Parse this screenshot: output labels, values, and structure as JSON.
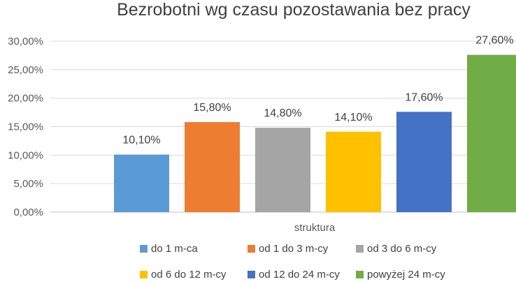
{
  "chart_data": {
    "type": "bar",
    "title": "Bezrobotni wg czasu pozostawania bez pracy",
    "xlabel": "struktura",
    "ylabel": "",
    "ylim": [
      0,
      30
    ],
    "yticks": [
      "0,00%",
      "5,00%",
      "10,00%",
      "15,00%",
      "20,00%",
      "25,00%",
      "30,00%"
    ],
    "grid": true,
    "legend_position": "bottom",
    "categories": [
      "struktura"
    ],
    "series": [
      {
        "name": "do 1 m-ca",
        "values": [
          10.1
        ],
        "label": "10,10%",
        "color": "#5b9bd5"
      },
      {
        "name": "od 1 do 3 m-cy",
        "values": [
          15.8
        ],
        "label": "15,80%",
        "color": "#ed7d31"
      },
      {
        "name": "od 3 do 6 m-cy",
        "values": [
          14.8
        ],
        "label": "14,80%",
        "color": "#a5a5a5"
      },
      {
        "name": "od 6 do 12 m-cy",
        "values": [
          14.1
        ],
        "label": "14,10%",
        "color": "#ffc000"
      },
      {
        "name": "od 12 do 24 m-cy",
        "values": [
          17.6
        ],
        "label": "17,60%",
        "color": "#4472c4"
      },
      {
        "name": "powyżej 24 m-cy",
        "values": [
          27.6
        ],
        "label": "27,60%",
        "color": "#70ad47"
      }
    ]
  }
}
